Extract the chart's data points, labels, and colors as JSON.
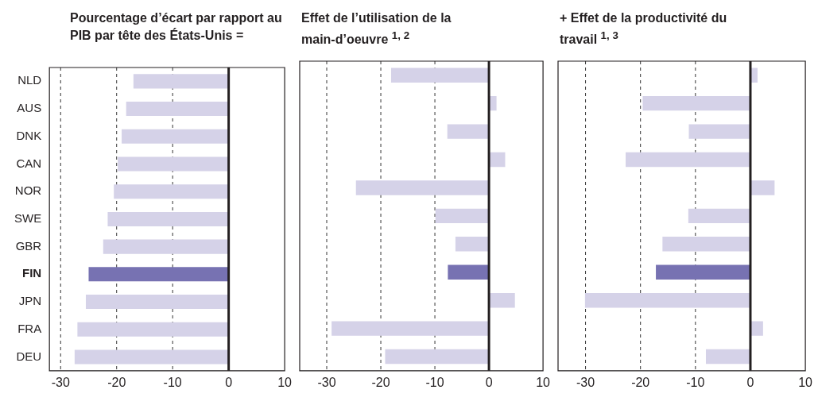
{
  "chart_data": [
    {
      "type": "bar",
      "orientation": "horizontal",
      "title": "Pourcentage d’écart par rapport au PIB par tête des États-Unis =",
      "categories": [
        "NLD",
        "AUS",
        "DNK",
        "CAN",
        "NOR",
        "SWE",
        "GBR",
        "FIN",
        "JPN",
        "FRA",
        "DEU"
      ],
      "values": [
        -17.0,
        -18.3,
        -19.1,
        -19.8,
        -20.5,
        -21.6,
        -22.4,
        -25.0,
        -25.5,
        -27.0,
        -27.5
      ],
      "colors": [
        "#d5d2e8",
        "#d5d2e8",
        "#d5d2e8",
        "#d5d2e8",
        "#d5d2e8",
        "#d5d2e8",
        "#d5d2e8",
        "#7772b2",
        "#d5d2e8",
        "#d5d2e8",
        "#d5d2e8"
      ],
      "xlim": [
        -32,
        10
      ],
      "xticks": [
        -30,
        -20,
        -10,
        0,
        10
      ],
      "grid": false,
      "ref_lines": [
        {
          "axis": "x",
          "value": -30,
          "line_style": "dashed",
          "color": "#333333"
        },
        {
          "axis": "x",
          "value": -20,
          "line_style": "dashed",
          "color": "#333333"
        },
        {
          "axis": "x",
          "value": -10,
          "line_style": "dashed",
          "color": "#333333"
        },
        {
          "axis": "x",
          "value": 0,
          "line_style": "solid",
          "color": "#231f20"
        }
      ]
    },
    {
      "type": "bar",
      "orientation": "horizontal",
      "title": "Effet de l’utilisation de la main-d’oeuvre $^{1, 2}$",
      "categories": [
        null,
        null,
        null,
        null,
        null,
        null,
        null,
        null,
        null,
        null,
        null
      ],
      "values": [
        -18.1,
        1.4,
        -7.7,
        3.0,
        -24.6,
        -9.9,
        -6.2,
        -7.6,
        4.8,
        -29.1,
        -19.2
      ],
      "colors": [
        "#d5d2e8",
        "#d5d2e8",
        "#d5d2e8",
        "#d5d2e8",
        "#d5d2e8",
        "#d5d2e8",
        "#d5d2e8",
        "#7772b2",
        "#d5d2e8",
        "#d5d2e8",
        "#d5d2e8"
      ],
      "xlim": [
        -35,
        10
      ],
      "xticks": [
        -30,
        -20,
        -10,
        0,
        10
      ],
      "grid": false,
      "tick_labels": "x",
      "ref_lines": [
        {
          "axis": "x",
          "value": -30,
          "line_style": "dashed",
          "color": "#333333"
        },
        {
          "axis": "x",
          "value": -20,
          "line_style": "dashed",
          "color": "#333333"
        },
        {
          "axis": "x",
          "value": -10,
          "line_style": "dashed",
          "color": "#333333"
        },
        {
          "axis": "x",
          "value": 0,
          "line_style": "solid",
          "color": "#231f20"
        }
      ]
    },
    {
      "type": "bar",
      "orientation": "horizontal",
      "title": "+ Effet de la productivité du travail $^{1, 3}$",
      "categories": [
        null,
        null,
        null,
        null,
        null,
        null,
        null,
        null,
        null,
        null,
        null
      ],
      "values": [
        1.3,
        -19.6,
        -11.2,
        -22.7,
        4.4,
        -11.3,
        -16.0,
        -17.2,
        -30.1,
        2.3,
        -8.1
      ],
      "colors": [
        "#d5d2e8",
        "#d5d2e8",
        "#d5d2e8",
        "#d5d2e8",
        "#d5d2e8",
        "#d5d2e8",
        "#d5d2e8",
        "#7772b2",
        "#d5d2e8",
        "#d5d2e8",
        "#d5d2e8"
      ],
      "xlim": [
        -35,
        10
      ],
      "xticks": [
        -30,
        -20,
        -10,
        0,
        10
      ],
      "grid": false,
      "tick_labels": "x",
      "ref_lines": [
        {
          "axis": "x",
          "value": -30,
          "line_style": "dashed",
          "color": "#333333"
        },
        {
          "axis": "x",
          "value": -20,
          "line_style": "dashed",
          "color": "#333333"
        },
        {
          "axis": "x",
          "value": -10,
          "line_style": "dashed",
          "color": "#333333"
        },
        {
          "axis": "x",
          "value": 0,
          "line_style": "solid",
          "color": "#231f20"
        }
      ]
    }
  ]
}
